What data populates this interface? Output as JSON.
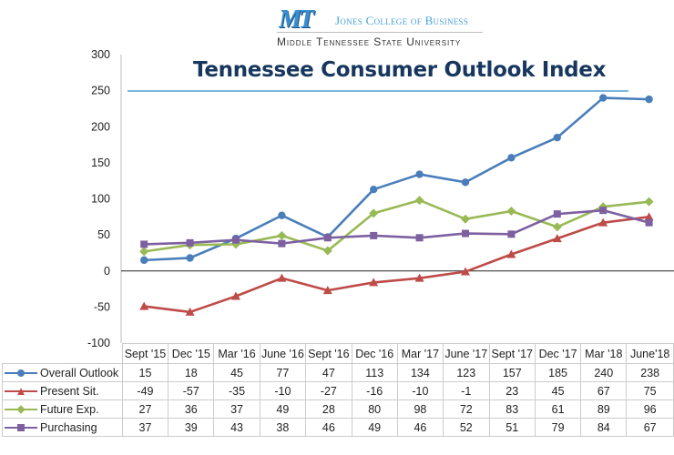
{
  "logo": {
    "monogram": "MT",
    "college": "Jones College of Business",
    "university": "Middle Tennessee State University"
  },
  "chart_data": {
    "type": "line",
    "title": "Tennessee Consumer Outlook Index",
    "xlabel": "",
    "ylabel": "",
    "ylim": [
      -100,
      300
    ],
    "yticks": [
      300,
      250,
      200,
      150,
      100,
      50,
      0,
      -50,
      -100
    ],
    "grid": false,
    "legend": "data-table-below",
    "categories": [
      "Sept '15",
      "Dec '15",
      "Mar '16",
      "June '16",
      "Sept '16",
      "Dec '16",
      "Mar '17",
      "June '17",
      "Sept '17",
      "Dec '17",
      "Mar '18",
      "June'18"
    ],
    "series": [
      {
        "name": "Overall Outlook",
        "color": "#4a7ebb",
        "marker": "circle",
        "values": [
          15,
          18,
          45,
          77,
          47,
          113,
          134,
          123,
          157,
          185,
          240,
          238
        ]
      },
      {
        "name": "Present Sit.",
        "color": "#be4b48",
        "marker": "triangle",
        "values": [
          -49,
          -57,
          -35,
          -10,
          -27,
          -16,
          -10,
          -1,
          23,
          45,
          67,
          75
        ]
      },
      {
        "name": "Future Exp.",
        "color": "#98b954",
        "marker": "diamond",
        "values": [
          27,
          36,
          37,
          49,
          28,
          80,
          98,
          72,
          83,
          61,
          89,
          96
        ]
      },
      {
        "name": "Purchasing",
        "color": "#7d60a0",
        "marker": "square",
        "values": [
          37,
          39,
          43,
          38,
          46,
          49,
          46,
          52,
          51,
          79,
          84,
          67
        ]
      }
    ]
  }
}
